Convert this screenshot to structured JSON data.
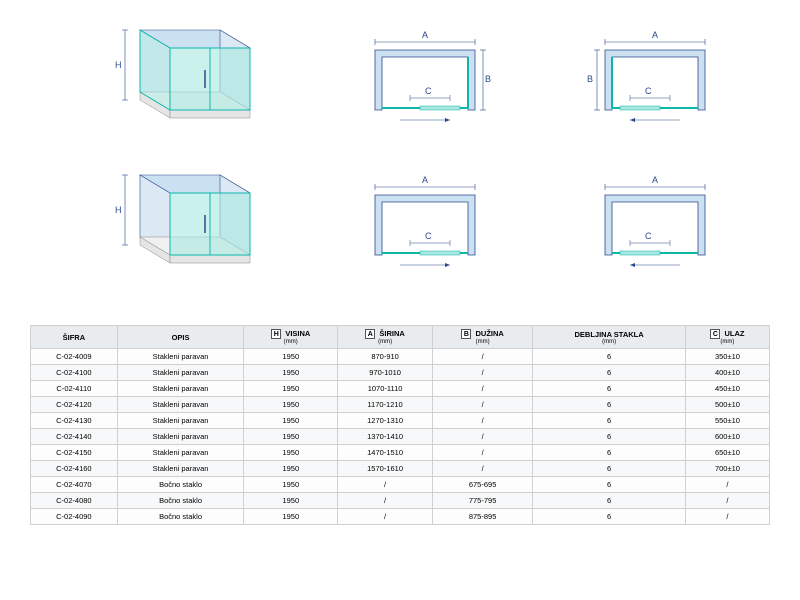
{
  "colors": {
    "line": "#2b4a8c",
    "glass": "#a8e8e0",
    "glass_stroke": "#0bb8aa",
    "wall": "#cbe0f0",
    "wall_stroke": "#2b4a8c",
    "bg": "#ffffff"
  },
  "labels": {
    "H": "H",
    "A": "A",
    "B": "B",
    "C": "C"
  },
  "table": {
    "headers": {
      "sifra": "ŠIFRA",
      "opis": "OPIS",
      "visina": "VISINA",
      "visina_unit": "(mm)",
      "sirina": "ŠIRINA",
      "sirina_unit": "(mm)",
      "duzina": "DUŽINA",
      "duzina_unit": "(mm)",
      "debljina": "DEBLJINA STAKLA",
      "debljina_unit": "(mm)",
      "ulaz": "ULAZ",
      "ulaz_unit": "(mm)"
    },
    "rows": [
      {
        "sifra": "C-02-4009",
        "opis": "Stakleni paravan",
        "visina": "1950",
        "sirina": "870-910",
        "duzina": "/",
        "debljina": "6",
        "ulaz": "350±10"
      },
      {
        "sifra": "C-02-4100",
        "opis": "Stakleni paravan",
        "visina": "1950",
        "sirina": "970-1010",
        "duzina": "/",
        "debljina": "6",
        "ulaz": "400±10"
      },
      {
        "sifra": "C-02-4110",
        "opis": "Stakleni paravan",
        "visina": "1950",
        "sirina": "1070-1110",
        "duzina": "/",
        "debljina": "6",
        "ulaz": "450±10"
      },
      {
        "sifra": "C-02-4120",
        "opis": "Stakleni paravan",
        "visina": "1950",
        "sirina": "1170-1210",
        "duzina": "/",
        "debljina": "6",
        "ulaz": "500±10"
      },
      {
        "sifra": "C-02-4130",
        "opis": "Stakleni paravan",
        "visina": "1950",
        "sirina": "1270-1310",
        "duzina": "/",
        "debljina": "6",
        "ulaz": "550±10"
      },
      {
        "sifra": "C-02-4140",
        "opis": "Stakleni paravan",
        "visina": "1950",
        "sirina": "1370-1410",
        "duzina": "/",
        "debljina": "6",
        "ulaz": "600±10"
      },
      {
        "sifra": "C-02-4150",
        "opis": "Stakleni paravan",
        "visina": "1950",
        "sirina": "1470-1510",
        "duzina": "/",
        "debljina": "6",
        "ulaz": "650±10"
      },
      {
        "sifra": "C-02-4160",
        "opis": "Stakleni paravan",
        "visina": "1950",
        "sirina": "1570-1610",
        "duzina": "/",
        "debljina": "6",
        "ulaz": "700±10"
      },
      {
        "sifra": "C-02-4070",
        "opis": "Bočno staklo",
        "visina": "1950",
        "sirina": "/",
        "duzina": "675-695",
        "debljina": "6",
        "ulaz": "/"
      },
      {
        "sifra": "C-02-4080",
        "opis": "Bočno staklo",
        "visina": "1950",
        "sirina": "/",
        "duzina": "775-795",
        "debljina": "6",
        "ulaz": "/"
      },
      {
        "sifra": "C-02-4090",
        "opis": "Bočno staklo",
        "visina": "1950",
        "sirina": "/",
        "duzina": "875-895",
        "debljina": "6",
        "ulaz": "/"
      }
    ]
  }
}
